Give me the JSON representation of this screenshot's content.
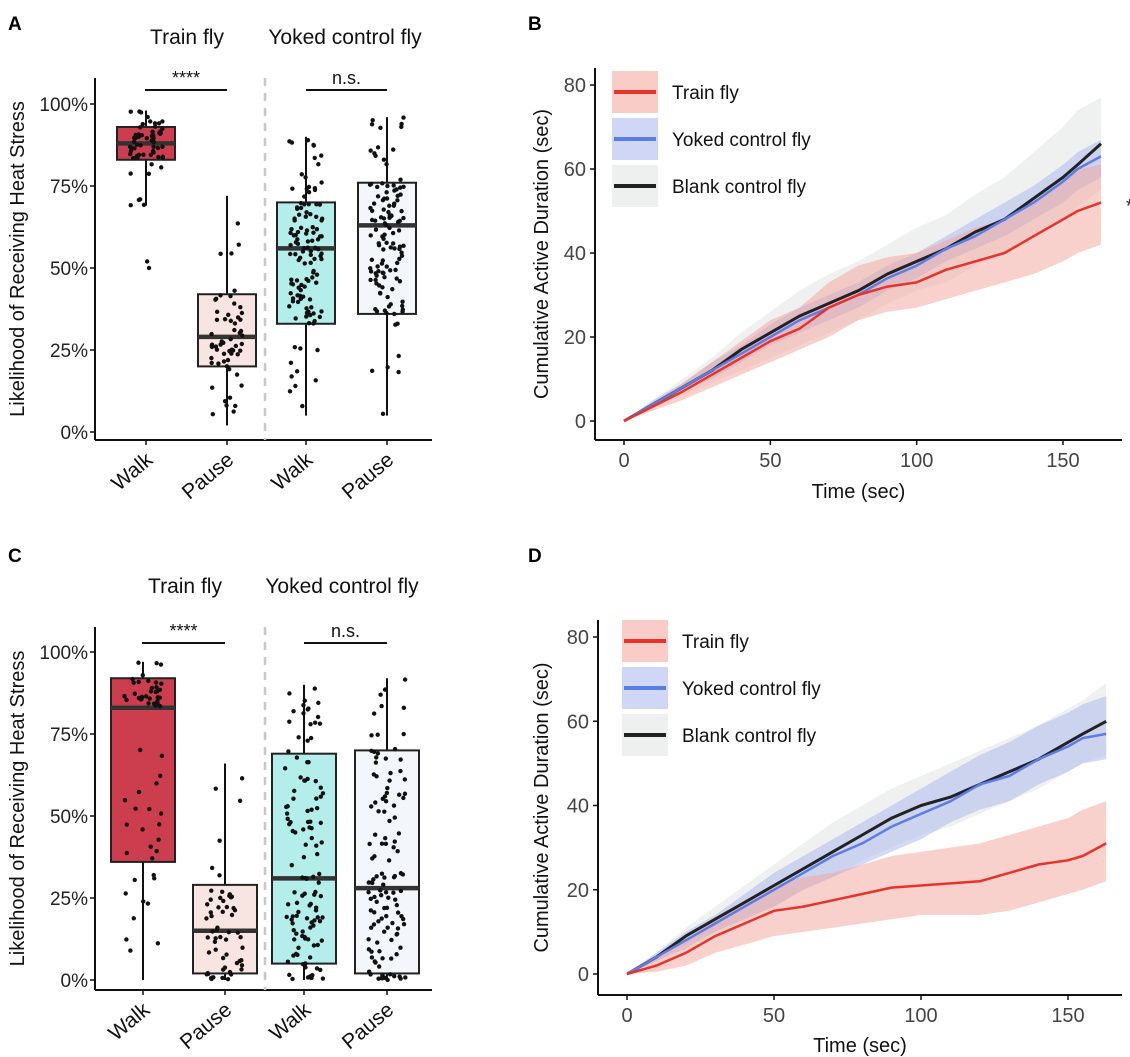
{
  "panels": {
    "A": "A",
    "B": "B",
    "C": "C",
    "D": "D"
  },
  "colors": {
    "train_box_walk": "#cc3d4e",
    "train_box_pause": "#f8e4e1",
    "yoked_box_walk": "#b4eeeb",
    "yoked_box_pause": "#f3f7fc",
    "train_line": "#e8332a",
    "train_band": "#f4a39a",
    "yoked_line": "#5a7de8",
    "yoked_band": "#a9b6ee",
    "blank_line": "#222222",
    "blank_band": "#dfe3e1",
    "points": "#111111",
    "divider": "#c8c8c8"
  },
  "chart_data": [
    {
      "type": "box",
      "panel": "A",
      "group_labels": [
        "Train fly",
        "Yoked control fly"
      ],
      "significance": [
        "****",
        "n.s."
      ],
      "ylabel": "Likelihood of Receiving Heat Stress",
      "y_ticks": [
        "0%",
        "25%",
        "50%",
        "75%",
        "100%"
      ],
      "ylim": [
        0,
        100
      ],
      "categories": [
        "Walk",
        "Pause",
        "Walk",
        "Pause"
      ],
      "boxes": [
        {
          "group": "Train fly",
          "category": "Walk",
          "q1": 83,
          "median": 88,
          "q3": 93,
          "whisker_low": 69,
          "whisker_high": 98,
          "outliers": [
            50,
            52
          ],
          "n_points": 60
        },
        {
          "group": "Train fly",
          "category": "Pause",
          "q1": 20,
          "median": 29,
          "q3": 42,
          "whisker_low": 2,
          "whisker_high": 72,
          "outliers": [],
          "n_points": 60
        },
        {
          "group": "Yoked control fly",
          "category": "Walk",
          "q1": 33,
          "median": 56,
          "q3": 70,
          "whisker_low": 5,
          "whisker_high": 90,
          "outliers": [],
          "n_points": 120
        },
        {
          "group": "Yoked control fly",
          "category": "Pause",
          "q1": 36,
          "median": 63,
          "q3": 76,
          "whisker_low": 5,
          "whisker_high": 96,
          "outliers": [],
          "n_points": 120
        }
      ]
    },
    {
      "type": "line",
      "panel": "B",
      "xlabel": "Time (sec)",
      "ylabel": "Cumulative Active Duration (sec)",
      "x_ticks": [
        0,
        50,
        100,
        150
      ],
      "y_ticks": [
        0,
        20,
        40,
        60,
        80
      ],
      "xlim": [
        -6,
        168
      ],
      "ylim": [
        -4,
        83
      ],
      "legend": [
        "Train fly",
        "Yoked control fly",
        "Blank control fly"
      ],
      "legend_position": "top-left",
      "annotation": "*",
      "x": [
        0,
        10,
        20,
        30,
        40,
        50,
        60,
        70,
        80,
        90,
        100,
        110,
        120,
        130,
        140,
        150,
        155,
        163
      ],
      "series": [
        {
          "name": "Train fly",
          "values": [
            0,
            3.5,
            7,
            11,
            15,
            19,
            22,
            27,
            30,
            32,
            33,
            36,
            38,
            40,
            44,
            48,
            50,
            52
          ],
          "band": [
            [
              0,
              0
            ],
            [
              2.5,
              4.5
            ],
            [
              5,
              9
            ],
            [
              8,
              14
            ],
            [
              11,
              19
            ],
            [
              14,
              24
            ],
            [
              17,
              27
            ],
            [
              20,
              33
            ],
            [
              24,
              37
            ],
            [
              26,
              39
            ],
            [
              27,
              40
            ],
            [
              29,
              43
            ],
            [
              31,
              46
            ],
            [
              33,
              48
            ],
            [
              35,
              52
            ],
            [
              38,
              57
            ],
            [
              40,
              60
            ],
            [
              42,
              61
            ]
          ]
        },
        {
          "name": "Yoked control fly",
          "values": [
            0,
            4,
            8,
            12,
            16,
            20,
            24,
            27,
            30,
            34,
            37,
            41,
            44,
            48,
            52,
            57,
            60,
            63
          ],
          "band": [
            [
              0,
              0
            ],
            [
              3,
              5
            ],
            [
              7,
              9
            ],
            [
              10,
              14
            ],
            [
              14,
              18
            ],
            [
              18,
              23
            ],
            [
              21,
              27
            ],
            [
              24,
              30
            ],
            [
              27,
              33
            ],
            [
              31,
              37
            ],
            [
              34,
              40
            ],
            [
              38,
              44
            ],
            [
              41,
              48
            ],
            [
              44,
              52
            ],
            [
              48,
              56
            ],
            [
              52,
              61
            ],
            [
              55,
              64
            ],
            [
              58,
              67
            ]
          ]
        },
        {
          "name": "Blank control fly",
          "values": [
            0,
            4,
            8,
            12,
            17,
            21,
            25,
            28,
            31,
            35,
            38,
            41,
            45,
            48,
            53,
            58,
            61,
            66
          ],
          "band": [
            [
              0,
              0
            ],
            [
              3,
              5
            ],
            [
              6,
              10
            ],
            [
              9,
              15
            ],
            [
              12,
              21
            ],
            [
              15,
              26
            ],
            [
              18,
              31
            ],
            [
              21,
              35
            ],
            [
              24,
              38
            ],
            [
              28,
              42
            ],
            [
              31,
              46
            ],
            [
              33,
              49
            ],
            [
              37,
              54
            ],
            [
              40,
              58
            ],
            [
              44,
              64
            ],
            [
              48,
              70
            ],
            [
              51,
              74
            ],
            [
              55,
              77
            ]
          ]
        }
      ]
    },
    {
      "type": "box",
      "panel": "C",
      "group_labels": [
        "Train fly",
        "Yoked control fly"
      ],
      "significance": [
        "****",
        "n.s."
      ],
      "ylabel": "Likelihood of Receiving Heat Stress",
      "y_ticks": [
        "0%",
        "25%",
        "50%",
        "75%",
        "100%"
      ],
      "ylim": [
        0,
        100
      ],
      "categories": [
        "Walk",
        "Pause",
        "Walk",
        "Pause"
      ],
      "boxes": [
        {
          "group": "Train fly",
          "category": "Walk",
          "q1": 36,
          "median": 83,
          "q3": 92,
          "whisker_low": 0,
          "whisker_high": 97,
          "outliers": [],
          "n_points": 60
        },
        {
          "group": "Train fly",
          "category": "Pause",
          "q1": 2,
          "median": 15,
          "q3": 29,
          "whisker_low": 0,
          "whisker_high": 66,
          "outliers": [],
          "n_points": 60
        },
        {
          "group": "Yoked control fly",
          "category": "Walk",
          "q1": 5,
          "median": 31,
          "q3": 69,
          "whisker_low": 0,
          "whisker_high": 90,
          "outliers": [],
          "n_points": 120
        },
        {
          "group": "Yoked control fly",
          "category": "Pause",
          "q1": 2,
          "median": 28,
          "q3": 70,
          "whisker_low": 0,
          "whisker_high": 92,
          "outliers": [],
          "n_points": 120
        }
      ]
    },
    {
      "type": "line",
      "panel": "D",
      "xlabel": "Time (sec)",
      "ylabel": "Cumulative Active Duration (sec)",
      "x_ticks": [
        0,
        50,
        100,
        150
      ],
      "y_ticks": [
        0,
        20,
        40,
        60,
        80
      ],
      "xlim": [
        -6,
        168
      ],
      "ylim": [
        -4,
        83
      ],
      "legend": [
        "Train fly",
        "Yoked control fly",
        "Blank control fly"
      ],
      "legend_position": "top-left",
      "x": [
        0,
        10,
        20,
        30,
        40,
        50,
        60,
        70,
        80,
        90,
        100,
        110,
        120,
        130,
        140,
        150,
        155,
        163
      ],
      "series": [
        {
          "name": "Train fly",
          "values": [
            0,
            2,
            5,
            9,
            12,
            15,
            16,
            17.5,
            19,
            20.5,
            21,
            21.5,
            22,
            24,
            26,
            27,
            28,
            31
          ],
          "band": [
            [
              0,
              0
            ],
            [
              0.5,
              4
            ],
            [
              2,
              8
            ],
            [
              5,
              13
            ],
            [
              7,
              17
            ],
            [
              9,
              21
            ],
            [
              10,
              23
            ],
            [
              11,
              24
            ],
            [
              12,
              26
            ],
            [
              13,
              28
            ],
            [
              14,
              29
            ],
            [
              14,
              30
            ],
            [
              14,
              31
            ],
            [
              15,
              33
            ],
            [
              17,
              35
            ],
            [
              19,
              37
            ],
            [
              20,
              39
            ],
            [
              22,
              41
            ]
          ]
        },
        {
          "name": "Yoked control fly",
          "values": [
            0,
            4,
            8,
            12,
            16,
            20,
            24,
            28,
            31,
            35,
            38,
            41,
            45,
            47,
            51,
            54,
            56,
            57
          ],
          "band": [
            [
              0,
              0
            ],
            [
              3,
              5
            ],
            [
              6,
              10
            ],
            [
              10,
              14
            ],
            [
              13,
              19
            ],
            [
              16,
              24
            ],
            [
              20,
              28
            ],
            [
              23,
              32
            ],
            [
              26,
              36
            ],
            [
              29,
              40
            ],
            [
              32,
              44
            ],
            [
              36,
              48
            ],
            [
              39,
              52
            ],
            [
              41,
              55
            ],
            [
              45,
              59
            ],
            [
              48,
              62
            ],
            [
              50,
              64
            ],
            [
              51,
              66
            ]
          ]
        },
        {
          "name": "Blank control fly",
          "values": [
            0,
            4,
            9,
            13,
            17,
            21,
            25,
            29,
            33,
            37,
            40,
            42,
            45,
            48,
            51,
            55,
            57,
            60
          ],
          "band": [
            [
              0,
              0
            ],
            [
              3,
              5
            ],
            [
              7,
              11
            ],
            [
              10,
              16
            ],
            [
              13,
              21
            ],
            [
              16,
              26
            ],
            [
              20,
              31
            ],
            [
              23,
              36
            ],
            [
              27,
              40
            ],
            [
              30,
              44
            ],
            [
              33,
              47
            ],
            [
              35,
              50
            ],
            [
              38,
              53
            ],
            [
              41,
              56
            ],
            [
              44,
              59
            ],
            [
              48,
              63
            ],
            [
              50,
              65
            ],
            [
              52,
              69
            ]
          ]
        }
      ]
    }
  ]
}
